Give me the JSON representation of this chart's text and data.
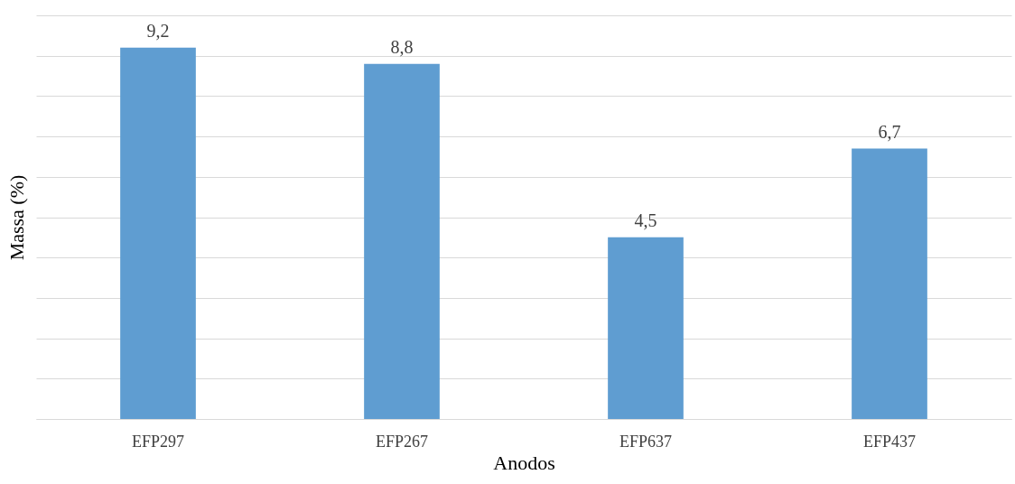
{
  "chart_data": {
    "type": "bar",
    "xlabel": "Anodos",
    "ylabel": "Massa (%)",
    "categories": [
      "EFP297",
      "EFP267",
      "EFP637",
      "EFP437"
    ],
    "values": [
      9.2,
      8.8,
      4.5,
      6.7
    ],
    "value_labels": [
      "9,2",
      "8,8",
      "4,5",
      "6,7"
    ],
    "color": "#5f9dd1",
    "grid": "y",
    "tick_labels": "x"
  }
}
